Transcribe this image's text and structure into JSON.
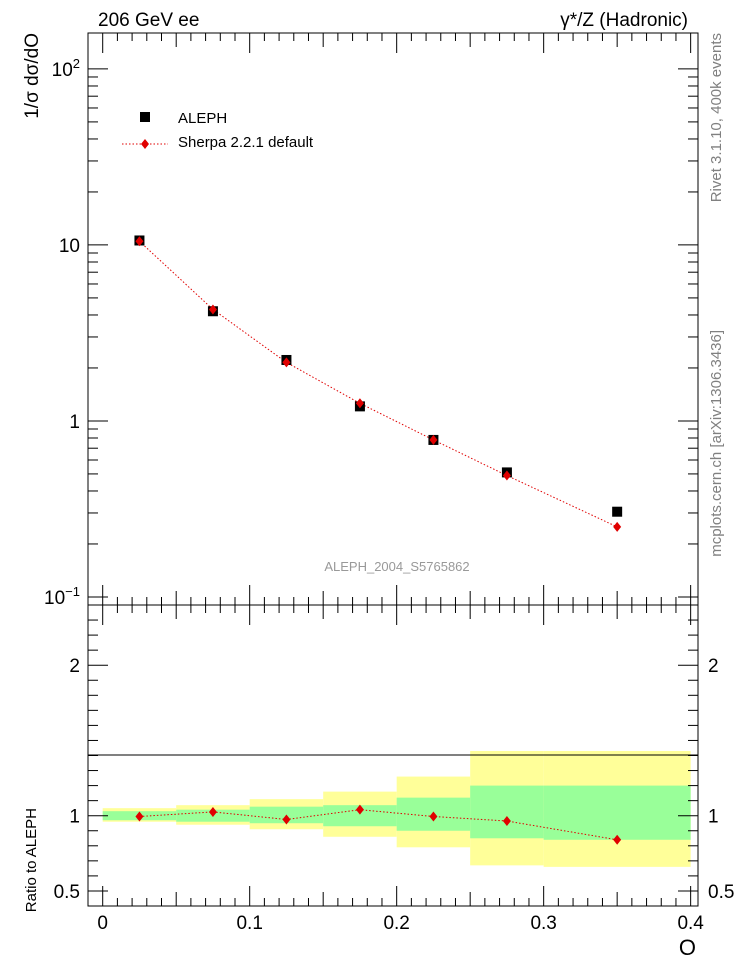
{
  "header": {
    "left": "206 GeV ee",
    "right": "γ*/Z (Hadronic)"
  },
  "side_labels": {
    "rivet": "Rivet 3.1.10,  400k events",
    "mcplots": "mcplots.cern.ch [arXiv:1306.3436]"
  },
  "watermark": "ALEPH_2004_S5765862",
  "colors": {
    "data": "#000000",
    "mc": "#e00000",
    "band_inner": "#99ff99",
    "band_outer": "#ffff99"
  },
  "chart_data": [
    {
      "type": "scatter",
      "panel": "main",
      "ylabel": "1/σ  dσ/dO",
      "yscale": "log",
      "ylim": [
        0.09,
        160
      ],
      "xlim": [
        -0.01,
        0.405
      ],
      "ytick_labels": [
        {
          "value": 0.1,
          "base": "10",
          "exp": "−1"
        },
        {
          "value": 1,
          "base": "1",
          "exp": ""
        },
        {
          "value": 10,
          "base": "10",
          "exp": ""
        },
        {
          "value": 100,
          "base": "10",
          "exp": "2"
        }
      ],
      "legend": {
        "position": "top-left",
        "entries": [
          "ALEPH",
          "Sherpa 2.2.1 default"
        ]
      },
      "series": [
        {
          "name": "ALEPH",
          "marker": "square",
          "x": [
            0.025,
            0.075,
            0.125,
            0.175,
            0.225,
            0.275,
            0.35
          ],
          "y": [
            10.6,
            4.2,
            2.22,
            1.21,
            0.78,
            0.51,
            0.305
          ]
        },
        {
          "name": "Sherpa 2.2.1 default",
          "marker": "diamond",
          "line": "dotted",
          "x": [
            0.025,
            0.075,
            0.125,
            0.175,
            0.225,
            0.275,
            0.35
          ],
          "y": [
            10.5,
            4.3,
            2.15,
            1.26,
            0.78,
            0.49,
            0.25
          ]
        }
      ]
    },
    {
      "type": "line",
      "panel": "ratio",
      "ylabel": "Ratio to ALEPH",
      "xlabel": "O",
      "ylim": [
        0.4,
        2.4
      ],
      "xlim": [
        -0.01,
        0.405
      ],
      "yticks": [
        0.5,
        1,
        2
      ],
      "ytick_labels": [
        "0.5",
        "1",
        "2"
      ],
      "xticks": [
        0,
        0.1,
        0.2,
        0.3,
        0.4
      ],
      "xtick_labels": [
        "0",
        "0.1",
        "0.2",
        "0.3",
        "0.4"
      ],
      "bins": [
        {
          "x0": 0.0,
          "x1": 0.05,
          "inner": [
            0.97,
            1.03
          ],
          "outer": [
            0.96,
            1.05
          ]
        },
        {
          "x0": 0.05,
          "x1": 0.1,
          "inner": [
            0.96,
            1.04
          ],
          "outer": [
            0.94,
            1.07
          ]
        },
        {
          "x0": 0.1,
          "x1": 0.15,
          "inner": [
            0.95,
            1.06
          ],
          "outer": [
            0.91,
            1.11
          ]
        },
        {
          "x0": 0.15,
          "x1": 0.2,
          "inner": [
            0.93,
            1.07
          ],
          "outer": [
            0.86,
            1.16
          ]
        },
        {
          "x0": 0.2,
          "x1": 0.25,
          "inner": [
            0.9,
            1.12
          ],
          "outer": [
            0.79,
            1.26
          ]
        },
        {
          "x0": 0.25,
          "x1": 0.3,
          "inner": [
            0.85,
            1.2
          ],
          "outer": [
            0.67,
            1.43
          ]
        },
        {
          "x0": 0.3,
          "x1": 0.4,
          "inner": [
            0.84,
            1.2
          ],
          "outer": [
            0.66,
            1.43
          ]
        }
      ],
      "series": [
        {
          "name": "Sherpa 2.2.1 default",
          "x": [
            0.025,
            0.075,
            0.125,
            0.175,
            0.225,
            0.275,
            0.35
          ],
          "y": [
            0.995,
            1.025,
            0.975,
            1.04,
            0.995,
            0.965,
            0.84
          ]
        }
      ]
    }
  ]
}
